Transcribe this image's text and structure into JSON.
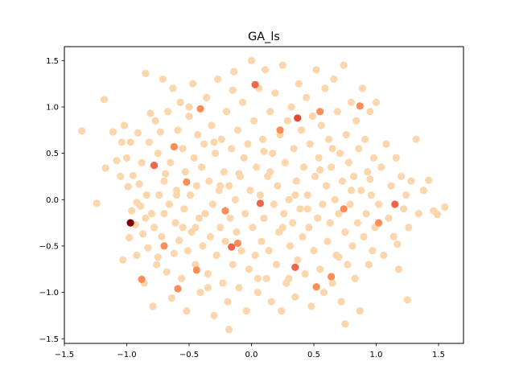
{
  "chart_data": {
    "type": "scatter",
    "title": "GA_ls",
    "xlabel": "",
    "ylabel": "",
    "xlim": [
      -1.5,
      1.7
    ],
    "ylim": [
      -1.55,
      1.65
    ],
    "xticks": [
      -1.5,
      -1.0,
      -0.5,
      0.0,
      0.5,
      1.0,
      1.5
    ],
    "xtick_labels": [
      "−1.5",
      "−1.0",
      "−0.5",
      "0.0",
      "0.5",
      "1.0",
      "1.5"
    ],
    "yticks": [
      -1.5,
      -1.0,
      -0.5,
      0.0,
      0.5,
      1.0,
      1.5
    ],
    "ytick_labels": [
      "−1.5",
      "−1.0",
      "−0.5",
      "0.0",
      "0.5",
      "1.0",
      "1.5"
    ],
    "grid": false,
    "legend": "none",
    "colormap": "OrRd",
    "point_color": "#fcd7ad",
    "highlight_points": [
      {
        "x": -0.97,
        "y": -0.25,
        "color": "#7f0000"
      },
      {
        "x": 0.37,
        "y": 0.88,
        "color": "#e34a33"
      },
      {
        "x": 0.03,
        "y": 1.24,
        "color": "#ef6548"
      },
      {
        "x": -0.16,
        "y": -0.51,
        "color": "#ef6548"
      },
      {
        "x": 0.07,
        "y": -0.04,
        "color": "#ef6548"
      },
      {
        "x": -0.78,
        "y": 0.37,
        "color": "#ef6548"
      },
      {
        "x": 0.35,
        "y": -0.73,
        "color": "#ef6548"
      },
      {
        "x": 1.15,
        "y": -0.05,
        "color": "#ef6548"
      },
      {
        "x": 0.64,
        "y": -0.83,
        "color": "#fc8d59"
      },
      {
        "x": -0.62,
        "y": 0.57,
        "color": "#fc8d59"
      },
      {
        "x": -0.11,
        "y": -0.47,
        "color": "#fc8d59"
      },
      {
        "x": -0.44,
        "y": -0.76,
        "color": "#fc8d59"
      },
      {
        "x": -0.52,
        "y": 0.19,
        "color": "#fc8d59"
      },
      {
        "x": 0.52,
        "y": -0.94,
        "color": "#fc8d59"
      },
      {
        "x": 0.23,
        "y": 0.75,
        "color": "#fc8d59"
      },
      {
        "x": 0.74,
        "y": -0.1,
        "color": "#fc8d59"
      },
      {
        "x": -0.88,
        "y": -0.86,
        "color": "#fc8d59"
      },
      {
        "x": -0.41,
        "y": 0.98,
        "color": "#fc8d59"
      },
      {
        "x": 0.55,
        "y": 0.95,
        "color": "#fc8d59"
      },
      {
        "x": 0.87,
        "y": 1.01,
        "color": "#fc8d59"
      },
      {
        "x": -0.21,
        "y": -0.12,
        "color": "#fc8d59"
      },
      {
        "x": 1.02,
        "y": -0.25,
        "color": "#fc8d59"
      },
      {
        "x": -0.59,
        "y": -0.96,
        "color": "#fc8d59"
      },
      {
        "x": -0.7,
        "y": -0.5,
        "color": "#fc8d59"
      }
    ],
    "points": [
      [
        -1.36,
        0.74
      ],
      [
        -1.24,
        -0.04
      ],
      [
        -1.18,
        1.08
      ],
      [
        -1.17,
        0.34
      ],
      [
        -1.11,
        0.73
      ],
      [
        -1.08,
        0.42
      ],
      [
        -1.05,
        0.25
      ],
      [
        -1.04,
        0.62
      ],
      [
        -1.03,
        -0.65
      ],
      [
        -1.02,
        0.8
      ],
      [
        -1.0,
        0.45
      ],
      [
        -0.99,
        0.14
      ],
      [
        -0.98,
        -0.41
      ],
      [
        -0.97,
        0.62
      ],
      [
        -0.96,
        -0.12
      ],
      [
        -0.95,
        0.26
      ],
      [
        -0.93,
        -0.27
      ],
      [
        -0.92,
        -0.6
      ],
      [
        -0.91,
        0.72
      ],
      [
        -0.9,
        0.17
      ],
      [
        -0.89,
        -0.07
      ],
      [
        -0.88,
        0.4
      ],
      [
        -0.87,
        -0.37
      ],
      [
        -0.86,
        -0.9
      ],
      [
        -0.85,
        1.36
      ],
      [
        -0.84,
        0.05
      ],
      [
        -0.83,
        -0.52
      ],
      [
        -0.82,
        0.62
      ],
      [
        -0.81,
        0.93
      ],
      [
        -0.8,
        -0.15
      ],
      [
        -0.79,
        -1.15
      ],
      [
        -0.78,
        -0.3
      ],
      [
        -0.77,
        0.85
      ],
      [
        -0.76,
        -0.7
      ],
      [
        -0.75,
        0.5
      ],
      [
        -0.74,
        0.05
      ],
      [
        -0.73,
        0.73
      ],
      [
        -0.72,
        -0.4
      ],
      [
        -0.71,
        1.3
      ],
      [
        -0.7,
        -0.15
      ],
      [
        -0.69,
        0.28
      ],
      [
        -0.68,
        -0.78
      ],
      [
        -0.67,
        0.95
      ],
      [
        -0.66,
        -0.05
      ],
      [
        -0.65,
        0.4
      ],
      [
        -0.64,
        -1.06
      ],
      [
        -0.63,
        1.2
      ],
      [
        -0.62,
        -0.58
      ],
      [
        -0.61,
        -0.25
      ],
      [
        -0.6,
        0.1
      ],
      [
        -0.59,
        0.75
      ],
      [
        -0.58,
        -0.44
      ],
      [
        -0.57,
        1.05
      ],
      [
        -0.56,
        -0.85
      ],
      [
        -0.55,
        0.55
      ],
      [
        -0.54,
        -0.1
      ],
      [
        -0.53,
        0.3
      ],
      [
        -0.52,
        -1.2
      ],
      [
        -0.51,
        -0.55
      ],
      [
        -0.5,
        0.9
      ],
      [
        -0.49,
        0.05
      ],
      [
        -0.48,
        -0.35
      ],
      [
        -0.47,
        1.25
      ],
      [
        -0.46,
        0.45
      ],
      [
        -0.45,
        -0.7
      ],
      [
        -0.44,
        0.15
      ],
      [
        -0.43,
        0.7
      ],
      [
        -0.42,
        -0.2
      ],
      [
        -0.41,
        -1.0
      ],
      [
        -0.4,
        0.35
      ],
      [
        -0.39,
        -0.5
      ],
      [
        -0.38,
        0.6
      ],
      [
        -0.37,
        -0.15
      ],
      [
        -0.36,
        1.1
      ],
      [
        -0.35,
        -0.8
      ],
      [
        -0.34,
        0.2
      ],
      [
        -0.33,
        -0.4
      ],
      [
        -0.32,
        0.8
      ],
      [
        -0.31,
        -0.05
      ],
      [
        -0.3,
        -1.25
      ],
      [
        -0.29,
        0.5
      ],
      [
        -0.28,
        -0.6
      ],
      [
        -0.27,
        1.3
      ],
      [
        -0.26,
        0.1
      ],
      [
        -0.25,
        -0.3
      ],
      [
        -0.24,
        0.65
      ],
      [
        -0.23,
        -0.9
      ],
      [
        -0.22,
        0.3
      ],
      [
        -0.21,
        -0.45
      ],
      [
        -0.2,
        0.95
      ],
      [
        -0.19,
        -1.1
      ],
      [
        -0.18,
        0.15
      ],
      [
        -0.17,
        -0.2
      ],
      [
        -0.16,
        0.55
      ],
      [
        -0.15,
        -0.7
      ],
      [
        -0.14,
        1.38
      ],
      [
        -0.13,
        0.0
      ],
      [
        -0.12,
        -0.35
      ],
      [
        -0.11,
        0.75
      ],
      [
        -0.1,
        -0.95
      ],
      [
        -0.09,
        0.25
      ],
      [
        -0.08,
        -0.55
      ],
      [
        -0.07,
        1.05
      ],
      [
        -0.06,
        0.45
      ],
      [
        -0.05,
        -0.15
      ],
      [
        -0.04,
        -1.2
      ],
      [
        -0.03,
        0.6
      ],
      [
        -0.02,
        -0.75
      ],
      [
        -0.01,
        0.1
      ],
      [
        0.0,
        1.5
      ],
      [
        0.01,
        -0.3
      ],
      [
        0.02,
        0.85
      ],
      [
        0.03,
        -0.6
      ],
      [
        0.04,
        0.35
      ],
      [
        0.05,
        -1.0
      ],
      [
        0.06,
        1.2
      ],
      [
        0.07,
        0.05
      ],
      [
        0.08,
        -0.45
      ],
      [
        0.09,
        0.65
      ],
      [
        0.1,
        -0.2
      ],
      [
        0.11,
        1.4
      ],
      [
        0.12,
        -0.85
      ],
      [
        0.13,
        0.25
      ],
      [
        0.14,
        -0.55
      ],
      [
        0.15,
        0.95
      ],
      [
        0.16,
        -1.1
      ],
      [
        0.17,
        0.5
      ],
      [
        0.18,
        -0.05
      ],
      [
        0.19,
        1.15
      ],
      [
        0.2,
        -0.7
      ],
      [
        0.21,
        0.15
      ],
      [
        0.22,
        -0.35
      ],
      [
        0.23,
        0.7
      ],
      [
        0.24,
        -1.2
      ],
      [
        0.25,
        1.45
      ],
      [
        0.26,
        -0.15
      ],
      [
        0.27,
        0.4
      ],
      [
        0.28,
        -0.9
      ],
      [
        0.29,
        0.85
      ],
      [
        0.3,
        0.0
      ],
      [
        0.31,
        -0.5
      ],
      [
        0.32,
        1.0
      ],
      [
        0.33,
        -0.25
      ],
      [
        0.34,
        0.55
      ],
      [
        0.35,
        -1.05
      ],
      [
        0.36,
        0.2
      ],
      [
        0.37,
        -0.65
      ],
      [
        0.38,
        1.25
      ],
      [
        0.39,
        -0.1
      ],
      [
        0.4,
        0.75
      ],
      [
        0.41,
        -0.4
      ],
      [
        0.42,
        0.35
      ],
      [
        0.43,
        -0.8
      ],
      [
        0.44,
        1.1
      ],
      [
        0.45,
        0.05
      ],
      [
        0.46,
        -0.3
      ],
      [
        0.47,
        0.6
      ],
      [
        0.48,
        -1.15
      ],
      [
        0.49,
        0.9
      ],
      [
        0.5,
        -0.55
      ],
      [
        0.51,
        0.25
      ],
      [
        0.52,
        1.4
      ],
      [
        0.53,
        -0.2
      ],
      [
        0.54,
        0.45
      ],
      [
        0.55,
        -0.75
      ],
      [
        0.56,
        0.8
      ],
      [
        0.57,
        -0.05
      ],
      [
        0.58,
        -1.0
      ],
      [
        0.59,
        1.2
      ],
      [
        0.6,
        0.15
      ],
      [
        0.61,
        -0.45
      ],
      [
        0.62,
        0.65
      ],
      [
        0.63,
        -0.25
      ],
      [
        0.64,
        0.35
      ],
      [
        0.65,
        -0.9
      ],
      [
        0.66,
        1.3
      ],
      [
        0.67,
        0.0
      ],
      [
        0.68,
        -0.6
      ],
      [
        0.69,
        0.95
      ],
      [
        0.7,
        -0.15
      ],
      [
        0.71,
        0.5
      ],
      [
        0.72,
        -1.1
      ],
      [
        0.73,
        0.2
      ],
      [
        0.74,
        1.45
      ],
      [
        0.75,
        -0.35
      ],
      [
        0.76,
        0.7
      ],
      [
        0.77,
        -0.7
      ],
      [
        0.78,
        0.4
      ],
      [
        0.79,
        -0.05
      ],
      [
        0.8,
        1.05
      ],
      [
        0.81,
        -0.5
      ],
      [
        0.82,
        0.25
      ],
      [
        0.83,
        -0.85
      ],
      [
        0.84,
        0.85
      ],
      [
        0.85,
        -0.25
      ],
      [
        0.86,
        0.55
      ],
      [
        0.87,
        -1.2
      ],
      [
        0.88,
        0.1
      ],
      [
        0.89,
        1.2
      ],
      [
        0.9,
        -0.4
      ],
      [
        0.91,
        0.65
      ],
      [
        0.92,
        -0.15
      ],
      [
        0.93,
        0.3
      ],
      [
        0.94,
        -0.7
      ],
      [
        0.95,
        0.95
      ],
      [
        0.96,
        0.05
      ],
      [
        0.97,
        -0.55
      ],
      [
        0.98,
        0.45
      ],
      [
        0.99,
        -0.3
      ],
      [
        1.0,
        1.05
      ],
      [
        1.02,
        -0.05
      ],
      [
        1.04,
        0.35
      ],
      [
        1.06,
        -0.6
      ],
      [
        1.08,
        0.6
      ],
      [
        1.1,
        -0.2
      ],
      [
        1.12,
        0.15
      ],
      [
        1.14,
        -0.4
      ],
      [
        1.16,
        0.45
      ],
      [
        1.18,
        -0.75
      ],
      [
        1.2,
        0.25
      ],
      [
        1.22,
        -0.1
      ],
      [
        1.24,
        0.05
      ],
      [
        1.26,
        -0.3
      ],
      [
        1.28,
        0.2
      ],
      [
        1.32,
        0.65
      ],
      [
        1.34,
        -0.15
      ],
      [
        1.38,
        0.1
      ],
      [
        1.42,
        0.21
      ],
      [
        1.46,
        -0.12
      ],
      [
        1.49,
        -0.16
      ],
      [
        1.55,
        -0.08
      ],
      [
        1.25,
        -1.08
      ],
      [
        1.17,
        -0.48
      ],
      [
        0.75,
        -1.34
      ],
      [
        -0.18,
        -1.4
      ],
      [
        -0.92,
        -0.03
      ],
      [
        -0.55,
        -0.3
      ],
      [
        -0.3,
        0.62
      ],
      [
        0.1,
        0.52
      ],
      [
        0.55,
        0.32
      ],
      [
        -0.7,
        0.2
      ],
      [
        -0.1,
        0.28
      ],
      [
        0.3,
        -0.85
      ],
      [
        -0.45,
        -0.3
      ],
      [
        0.05,
        -0.85
      ],
      [
        0.8,
        0.1
      ],
      [
        -0.25,
        0.15
      ],
      [
        0.45,
        -0.1
      ],
      [
        -0.6,
        0.05
      ],
      [
        0.15,
        0.3
      ],
      [
        -0.35,
        -0.95
      ],
      [
        0.65,
        0.55
      ],
      [
        -0.85,
        -0.2
      ],
      [
        0.25,
        -0.3
      ],
      [
        -0.15,
        1.18
      ],
      [
        0.95,
        0.22
      ],
      [
        -0.5,
        1.0
      ],
      [
        0.35,
        0.05
      ],
      [
        -0.75,
        -0.62
      ],
      [
        0.7,
        -0.62
      ]
    ]
  }
}
